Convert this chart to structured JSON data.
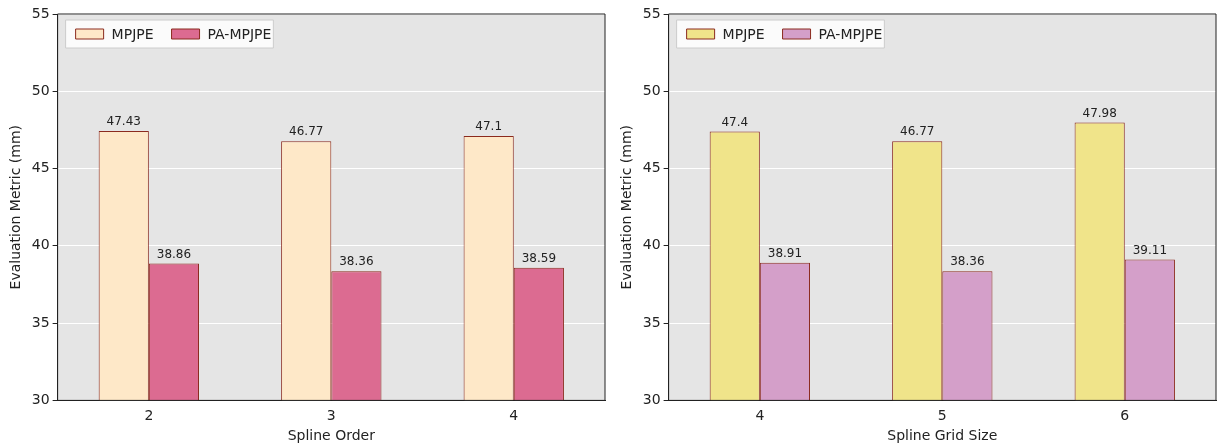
{
  "chart_data": [
    {
      "type": "bar",
      "xlabel": "Spline Order",
      "ylabel": "Evaluation Metric (mm)",
      "categories": [
        "2",
        "3",
        "4"
      ],
      "series": [
        {
          "name": "MPJPE",
          "color": "#fee8c8",
          "values": [
            47.43,
            46.77,
            47.1
          ]
        },
        {
          "name": "PA-MPJPE",
          "color": "#dc6b91",
          "values": [
            38.86,
            38.36,
            38.59
          ]
        }
      ],
      "ylim": [
        30,
        55
      ],
      "yticks": [
        30,
        35,
        40,
        45,
        50,
        55
      ],
      "grid": "y",
      "legend": "top left",
      "data_labels": true
    },
    {
      "type": "bar",
      "xlabel": "Spline Grid Size",
      "ylabel": "Evaluation Metric (mm)",
      "categories": [
        "4",
        "5",
        "6"
      ],
      "series": [
        {
          "name": "MPJPE",
          "color": "#f0e48a",
          "values": [
            47.4,
            46.77,
            47.98
          ]
        },
        {
          "name": "PA-MPJPE",
          "color": "#d49fc9",
          "values": [
            38.91,
            38.36,
            39.11
          ]
        }
      ],
      "ylim": [
        30,
        55
      ],
      "yticks": [
        30,
        35,
        40,
        45,
        50,
        55
      ],
      "grid": "y",
      "legend": "top left",
      "data_labels": true
    }
  ]
}
